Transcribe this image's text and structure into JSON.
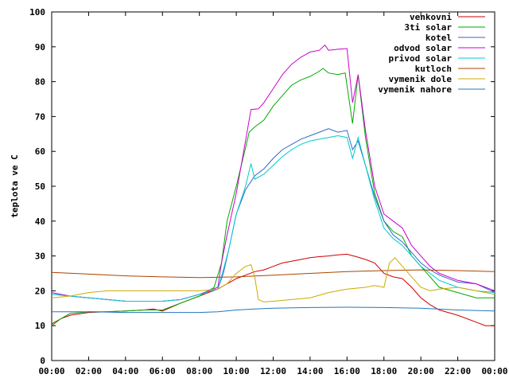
{
  "chart_data": {
    "type": "line",
    "title": "",
    "xlabel": "",
    "ylabel": "teplota ve C",
    "ylim": [
      0,
      100
    ],
    "xlim": [
      0,
      24
    ],
    "yticks": [
      0,
      10,
      20,
      30,
      40,
      50,
      60,
      70,
      80,
      90,
      100
    ],
    "xticks": [
      "00:00",
      "02:00",
      "04:00",
      "06:00",
      "08:00",
      "10:00",
      "12:00",
      "14:00",
      "16:00",
      "18:00",
      "20:00",
      "22:00",
      "00:00"
    ],
    "grid": false,
    "legend_position": "top-right",
    "series": [
      {
        "name": "venkovni",
        "color": "#cc0000",
        "points": [
          [
            0,
            10.5
          ],
          [
            0.5,
            12
          ],
          [
            1,
            13
          ],
          [
            2,
            13.8
          ],
          [
            3,
            14
          ],
          [
            4,
            14.2
          ],
          [
            5,
            14.5
          ],
          [
            5.5,
            14.8
          ],
          [
            6,
            14.2
          ],
          [
            7,
            16.5
          ],
          [
            8,
            18.5
          ],
          [
            9,
            20.5
          ],
          [
            9.5,
            22
          ],
          [
            10,
            23.5
          ],
          [
            10.5,
            24.5
          ],
          [
            11,
            25.5
          ],
          [
            11.5,
            26
          ],
          [
            12,
            27
          ],
          [
            12.5,
            28
          ],
          [
            13,
            28.5
          ],
          [
            13.5,
            29
          ],
          [
            14,
            29.5
          ],
          [
            14.5,
            29.8
          ],
          [
            15,
            30
          ],
          [
            15.5,
            30.3
          ],
          [
            16,
            30.5
          ],
          [
            16.5,
            29.8
          ],
          [
            17,
            29
          ],
          [
            17.5,
            28
          ],
          [
            18,
            25
          ],
          [
            18.5,
            24
          ],
          [
            19,
            23.5
          ],
          [
            19.5,
            21
          ],
          [
            20,
            18
          ],
          [
            20.5,
            16
          ],
          [
            21,
            14.5
          ],
          [
            22,
            13
          ],
          [
            23,
            11
          ],
          [
            23.5,
            10
          ],
          [
            24,
            10
          ]
        ]
      },
      {
        "name": "3ti solar",
        "color": "#00aa00",
        "points": [
          [
            0,
            10
          ],
          [
            0.5,
            12
          ],
          [
            1,
            13.5
          ],
          [
            2,
            14
          ],
          [
            3,
            14
          ],
          [
            4,
            14.2
          ],
          [
            5,
            14.5
          ],
          [
            6,
            14.5
          ],
          [
            7,
            16.5
          ],
          [
            8,
            18.5
          ],
          [
            8.8,
            21
          ],
          [
            9.2,
            28
          ],
          [
            9.5,
            40
          ],
          [
            10,
            50
          ],
          [
            10.5,
            61
          ],
          [
            10.7,
            65.5
          ],
          [
            11,
            67
          ],
          [
            11.5,
            69
          ],
          [
            12,
            73
          ],
          [
            12.5,
            76
          ],
          [
            13,
            79
          ],
          [
            13.5,
            80.5
          ],
          [
            14,
            81.5
          ],
          [
            14.5,
            83
          ],
          [
            14.7,
            83.8
          ],
          [
            15,
            82.5
          ],
          [
            15.5,
            82
          ],
          [
            15.9,
            82.5
          ],
          [
            16.3,
            68
          ],
          [
            16.6,
            82
          ],
          [
            17,
            64
          ],
          [
            17.5,
            48
          ],
          [
            18,
            40
          ],
          [
            18.5,
            37
          ],
          [
            19,
            35.5
          ],
          [
            19.5,
            30
          ],
          [
            20,
            27
          ],
          [
            20.5,
            24
          ],
          [
            21,
            21
          ],
          [
            22,
            19.5
          ],
          [
            23,
            18
          ],
          [
            24,
            18
          ]
        ]
      },
      {
        "name": "kotel",
        "color": "#3366cc",
        "points": [
          [
            0,
            19
          ],
          [
            1,
            18.5
          ],
          [
            2,
            18
          ],
          [
            3,
            17.5
          ],
          [
            4,
            17
          ],
          [
            5,
            17
          ],
          [
            6,
            17
          ],
          [
            7,
            17.5
          ],
          [
            8,
            19
          ],
          [
            9,
            20.5
          ],
          [
            9.3,
            25
          ],
          [
            9.6,
            32
          ],
          [
            10,
            42
          ],
          [
            10.5,
            49
          ],
          [
            11,
            53
          ],
          [
            11.5,
            55
          ],
          [
            12,
            58
          ],
          [
            12.5,
            60.5
          ],
          [
            13,
            62
          ],
          [
            13.5,
            63.5
          ],
          [
            14,
            64.5
          ],
          [
            14.5,
            65.5
          ],
          [
            15,
            66.5
          ],
          [
            15.5,
            65.5
          ],
          [
            16,
            66
          ],
          [
            16.3,
            60.5
          ],
          [
            16.6,
            63
          ],
          [
            17,
            56
          ],
          [
            17.5,
            47
          ],
          [
            18,
            40
          ],
          [
            18.5,
            36
          ],
          [
            19,
            34
          ],
          [
            19.5,
            31
          ],
          [
            20,
            28
          ],
          [
            20.5,
            26
          ],
          [
            21,
            24.5
          ],
          [
            22,
            22.5
          ],
          [
            23,
            22
          ],
          [
            24,
            19.5
          ]
        ]
      },
      {
        "name": "odvod solar",
        "color": "#cc00cc",
        "points": [
          [
            0,
            19.5
          ],
          [
            1,
            18.5
          ],
          [
            2,
            18
          ],
          [
            3,
            17.5
          ],
          [
            4,
            17
          ],
          [
            5,
            17
          ],
          [
            6,
            17
          ],
          [
            7,
            17.5
          ],
          [
            8,
            19
          ],
          [
            9,
            21
          ],
          [
            9.2,
            28
          ],
          [
            9.5,
            36
          ],
          [
            10,
            48
          ],
          [
            10.5,
            63
          ],
          [
            10.8,
            72
          ],
          [
            11.2,
            72.2
          ],
          [
            11.5,
            74
          ],
          [
            12,
            78
          ],
          [
            12.5,
            82
          ],
          [
            13,
            85
          ],
          [
            13.5,
            87
          ],
          [
            14,
            88.5
          ],
          [
            14.5,
            89
          ],
          [
            14.8,
            90.5
          ],
          [
            15,
            89
          ],
          [
            15.5,
            89.3
          ],
          [
            16,
            89.5
          ],
          [
            16.3,
            74
          ],
          [
            16.6,
            82
          ],
          [
            17,
            66
          ],
          [
            17.5,
            50
          ],
          [
            18,
            42
          ],
          [
            18.5,
            40
          ],
          [
            19,
            38
          ],
          [
            19.5,
            33
          ],
          [
            20,
            30
          ],
          [
            20.5,
            27
          ],
          [
            21,
            25
          ],
          [
            22,
            23
          ],
          [
            23,
            22
          ],
          [
            24,
            20
          ]
        ]
      },
      {
        "name": "privod solar",
        "color": "#00cccc",
        "points": [
          [
            0,
            19
          ],
          [
            1,
            18.5
          ],
          [
            2,
            18
          ],
          [
            3,
            17.5
          ],
          [
            4,
            17
          ],
          [
            5,
            17
          ],
          [
            6,
            17
          ],
          [
            7,
            17.5
          ],
          [
            8,
            19
          ],
          [
            9,
            20.5
          ],
          [
            9.3,
            26
          ],
          [
            9.6,
            32
          ],
          [
            10,
            42
          ],
          [
            10.5,
            50
          ],
          [
            10.8,
            56.5
          ],
          [
            11,
            52
          ],
          [
            11.5,
            53.5
          ],
          [
            12,
            56
          ],
          [
            12.5,
            58.5
          ],
          [
            13,
            60.5
          ],
          [
            13.5,
            62
          ],
          [
            14,
            63
          ],
          [
            14.5,
            63.5
          ],
          [
            15,
            64
          ],
          [
            15.5,
            64.5
          ],
          [
            16,
            64
          ],
          [
            16.3,
            58
          ],
          [
            16.6,
            64
          ],
          [
            17,
            56
          ],
          [
            17.5,
            46
          ],
          [
            18,
            38
          ],
          [
            18.5,
            35
          ],
          [
            19,
            33
          ],
          [
            19.5,
            30
          ],
          [
            20,
            27
          ],
          [
            20.5,
            25
          ],
          [
            21,
            23
          ],
          [
            22,
            21
          ],
          [
            23,
            20
          ],
          [
            24,
            19.5
          ]
        ]
      },
      {
        "name": "kutloch",
        "color": "#aa4400",
        "points": [
          [
            0,
            25.3
          ],
          [
            2,
            24.8
          ],
          [
            4,
            24.3
          ],
          [
            6,
            24
          ],
          [
            8,
            23.8
          ],
          [
            10,
            24
          ],
          [
            12,
            24.5
          ],
          [
            14,
            25
          ],
          [
            16,
            25.5
          ],
          [
            18,
            25.8
          ],
          [
            20,
            26
          ],
          [
            22,
            25.8
          ],
          [
            24,
            25.5
          ]
        ]
      },
      {
        "name": "vymenik dole",
        "color": "#ccaa00",
        "points": [
          [
            0,
            18
          ],
          [
            1,
            18.5
          ],
          [
            2,
            19.5
          ],
          [
            3,
            20
          ],
          [
            4,
            20
          ],
          [
            5,
            20
          ],
          [
            6,
            20
          ],
          [
            7,
            20
          ],
          [
            8,
            20
          ],
          [
            9,
            20.5
          ],
          [
            9.5,
            22
          ],
          [
            10,
            25
          ],
          [
            10.5,
            27
          ],
          [
            10.8,
            27.5
          ],
          [
            11,
            24
          ],
          [
            11.2,
            17.5
          ],
          [
            11.5,
            16.8
          ],
          [
            12,
            17
          ],
          [
            13,
            17.5
          ],
          [
            14,
            18
          ],
          [
            15,
            19.5
          ],
          [
            16,
            20.5
          ],
          [
            17,
            21
          ],
          [
            17.5,
            21.5
          ],
          [
            18,
            21
          ],
          [
            18.3,
            28
          ],
          [
            18.6,
            29.5
          ],
          [
            19,
            27
          ],
          [
            19.5,
            24
          ],
          [
            20,
            21
          ],
          [
            20.5,
            20
          ],
          [
            21,
            20.5
          ],
          [
            22,
            21
          ],
          [
            23,
            20
          ],
          [
            24,
            19
          ]
        ]
      },
      {
        "name": "vymenik nahore",
        "color": "#2277bb",
        "points": [
          [
            0,
            14
          ],
          [
            2,
            14
          ],
          [
            4,
            13.8
          ],
          [
            6,
            13.8
          ],
          [
            8,
            13.8
          ],
          [
            9,
            14
          ],
          [
            10,
            14.5
          ],
          [
            11,
            14.8
          ],
          [
            12,
            15
          ],
          [
            14,
            15.2
          ],
          [
            16,
            15.3
          ],
          [
            18,
            15.2
          ],
          [
            20,
            15
          ],
          [
            22,
            14.5
          ],
          [
            24,
            14.2
          ]
        ]
      }
    ]
  }
}
